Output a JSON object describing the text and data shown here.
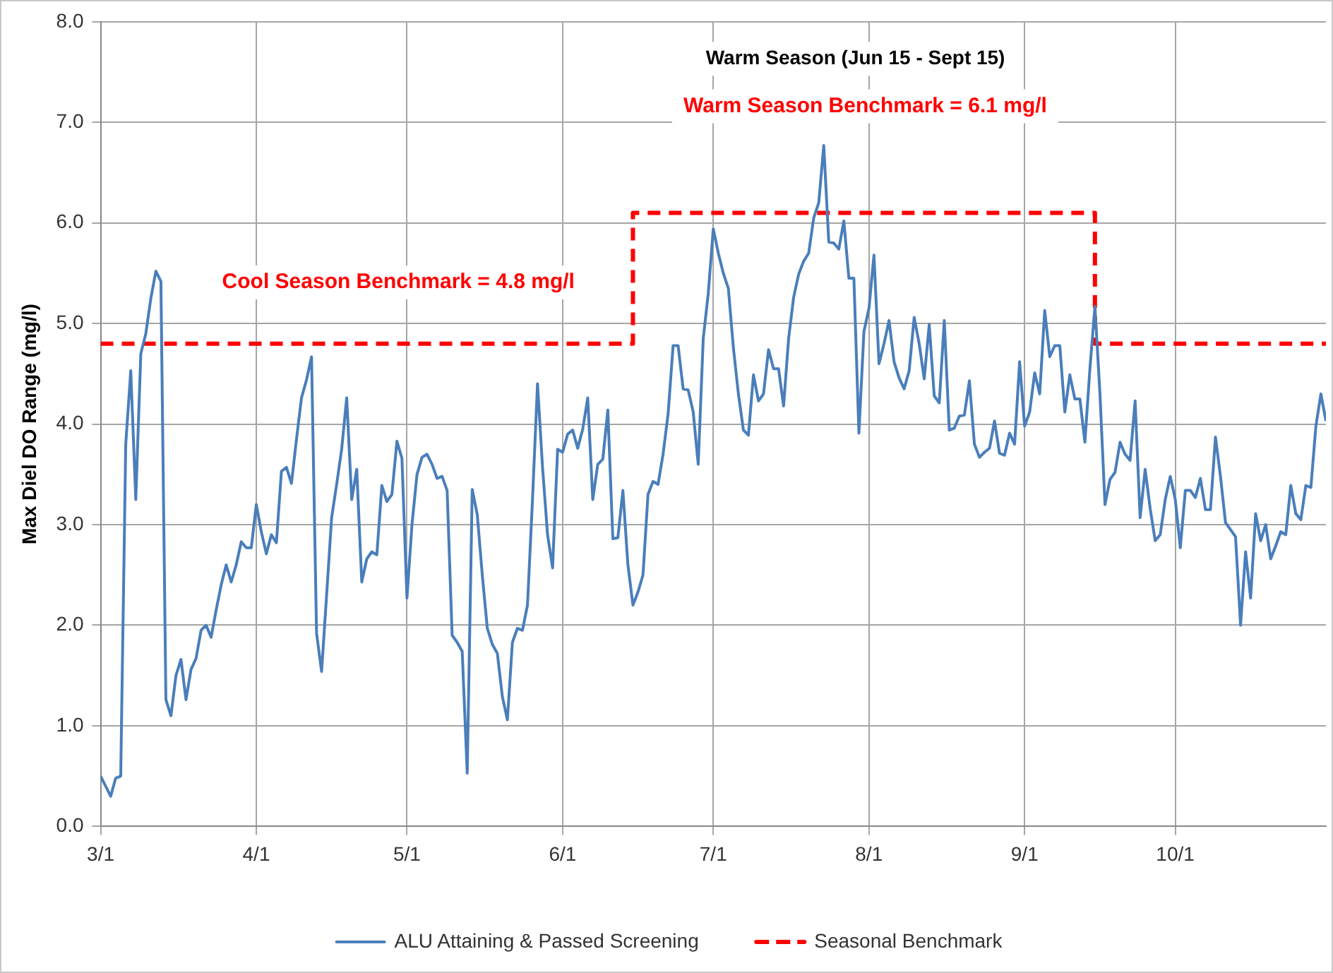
{
  "chart_data": {
    "type": "line",
    "ylabel": "Max Diel DO Range (mg/l)",
    "x": [
      "--03-01",
      "--03-02",
      "--03-03",
      "--03-04",
      "--03-05",
      "--03-06",
      "--03-07",
      "--03-08",
      "--03-09",
      "--03-10",
      "--03-11",
      "--03-12",
      "--03-13",
      "--03-14",
      "--03-15",
      "--03-16",
      "--03-17",
      "--03-18",
      "--03-19",
      "--03-20",
      "--03-21",
      "--03-22",
      "--03-23",
      "--03-24",
      "--03-25",
      "--03-26",
      "--03-27",
      "--03-28",
      "--03-29",
      "--03-30",
      "--03-31",
      "--04-01",
      "--04-02",
      "--04-03",
      "--04-04",
      "--04-05",
      "--04-06",
      "--04-07",
      "--04-08",
      "--04-09",
      "--04-10",
      "--04-11",
      "--04-12",
      "--04-13",
      "--04-14",
      "--04-15",
      "--04-16",
      "--04-17",
      "--04-18",
      "--04-19",
      "--04-20",
      "--04-21",
      "--04-22",
      "--04-23",
      "--04-24",
      "--04-25",
      "--04-26",
      "--04-27",
      "--04-28",
      "--04-29",
      "--04-30",
      "--05-01",
      "--05-02",
      "--05-03",
      "--05-04",
      "--05-05",
      "--05-06",
      "--05-07",
      "--05-08",
      "--05-09",
      "--05-10",
      "--05-11",
      "--05-12",
      "--05-13",
      "--05-14",
      "--05-15",
      "--05-16",
      "--05-17",
      "--05-18",
      "--05-19",
      "--05-20",
      "--05-21",
      "--05-22",
      "--05-23",
      "--05-24",
      "--05-25",
      "--05-26",
      "--05-27",
      "--05-28",
      "--05-29",
      "--05-30",
      "--05-31",
      "--06-01",
      "--06-02",
      "--06-03",
      "--06-04",
      "--06-05",
      "--06-06",
      "--06-07",
      "--06-08",
      "--06-09",
      "--06-10",
      "--06-11",
      "--06-12",
      "--06-13",
      "--06-14",
      "--06-15",
      "--06-16",
      "--06-17",
      "--06-18",
      "--06-19",
      "--06-20",
      "--06-21",
      "--06-22",
      "--06-23",
      "--06-24",
      "--06-25",
      "--06-26",
      "--06-27",
      "--06-28",
      "--06-29",
      "--06-30",
      "--07-01",
      "--07-02",
      "--07-03",
      "--07-04",
      "--07-05",
      "--07-06",
      "--07-07",
      "--07-08",
      "--07-09",
      "--07-10",
      "--07-11",
      "--07-12",
      "--07-13",
      "--07-14",
      "--07-15",
      "--07-16",
      "--07-17",
      "--07-18",
      "--07-19",
      "--07-20",
      "--07-21",
      "--07-22",
      "--07-23",
      "--07-24",
      "--07-25",
      "--07-26",
      "--07-27",
      "--07-28",
      "--07-29",
      "--07-30",
      "--07-31",
      "--08-01",
      "--08-02",
      "--08-03",
      "--08-04",
      "--08-05",
      "--08-06",
      "--08-07",
      "--08-08",
      "--08-09",
      "--08-10",
      "--08-11",
      "--08-12",
      "--08-13",
      "--08-14",
      "--08-15",
      "--08-16",
      "--08-17",
      "--08-18",
      "--08-19",
      "--08-20",
      "--08-21",
      "--08-22",
      "--08-23",
      "--08-24",
      "--08-25",
      "--08-26",
      "--08-27",
      "--08-28",
      "--08-29",
      "--08-30",
      "--08-31",
      "--09-01",
      "--09-02",
      "--09-03",
      "--09-04",
      "--09-05",
      "--09-06",
      "--09-07",
      "--09-08",
      "--09-09",
      "--09-10",
      "--09-11",
      "--09-12",
      "--09-13",
      "--09-14",
      "--09-15",
      "--09-16",
      "--09-17",
      "--09-18",
      "--09-19",
      "--09-20",
      "--09-21",
      "--09-22",
      "--09-23",
      "--09-24",
      "--09-25",
      "--09-26",
      "--09-27",
      "--09-28",
      "--09-29",
      "--09-30",
      "--10-01",
      "--10-02",
      "--10-03",
      "--10-04",
      "--10-05",
      "--10-06",
      "--10-07",
      "--10-08",
      "--10-09",
      "--10-10",
      "--10-11",
      "--10-12",
      "--10-13",
      "--10-14",
      "--10-15",
      "--10-16",
      "--10-17",
      "--10-18",
      "--10-19",
      "--10-20",
      "--10-21",
      "--10-22",
      "--10-23",
      "--10-24",
      "--10-25",
      "--10-26",
      "--10-27",
      "--10-28",
      "--10-29",
      "--10-30",
      "--10-31"
    ],
    "series": [
      {
        "name": "ALU Attaining & Passed Screening",
        "color": "#4a7ebb",
        "values": [
          0.5,
          0.4,
          0.3,
          0.48,
          0.5,
          3.8,
          4.53,
          3.25,
          4.7,
          4.9,
          5.25,
          5.52,
          5.42,
          1.26,
          1.1,
          1.5,
          1.66,
          1.26,
          1.56,
          1.67,
          1.95,
          2.0,
          1.88,
          2.15,
          2.4,
          2.6,
          2.43,
          2.6,
          2.83,
          2.77,
          2.77,
          3.2,
          2.93,
          2.71,
          2.9,
          2.82,
          3.53,
          3.57,
          3.41,
          3.85,
          4.26,
          4.44,
          4.67,
          1.92,
          1.54,
          2.3,
          3.07,
          3.4,
          3.75,
          4.26,
          3.25,
          3.55,
          2.43,
          2.66,
          2.73,
          2.7,
          3.39,
          3.23,
          3.3,
          3.83,
          3.66,
          2.27,
          3.0,
          3.5,
          3.67,
          3.7,
          3.6,
          3.46,
          3.48,
          3.34,
          1.9,
          1.83,
          1.74,
          0.53,
          3.35,
          3.1,
          2.5,
          1.97,
          1.81,
          1.72,
          1.29,
          1.06,
          1.83,
          1.97,
          1.95,
          2.2,
          3.25,
          4.4,
          3.57,
          2.9,
          2.57,
          3.75,
          3.72,
          3.9,
          3.94,
          3.76,
          3.95,
          4.26,
          3.25,
          3.6,
          3.65,
          4.14,
          2.86,
          2.87,
          3.34,
          2.6,
          2.2,
          2.33,
          2.5,
          3.3,
          3.43,
          3.4,
          3.7,
          4.1,
          4.78,
          4.78,
          4.35,
          4.34,
          4.12,
          3.6,
          4.85,
          5.3,
          5.94,
          5.7,
          5.5,
          5.35,
          4.76,
          4.3,
          3.94,
          3.89,
          4.49,
          4.23,
          4.3,
          4.74,
          4.55,
          4.55,
          4.18,
          4.85,
          5.26,
          5.49,
          5.62,
          5.7,
          6.05,
          6.2,
          6.77,
          5.81,
          5.8,
          5.74,
          6.02,
          5.45,
          5.45,
          3.91,
          4.92,
          5.15,
          5.68,
          4.6,
          4.8,
          5.03,
          4.62,
          4.46,
          4.35,
          4.53,
          5.06,
          4.8,
          4.45,
          4.99,
          4.28,
          4.21,
          5.03,
          3.94,
          3.96,
          4.08,
          4.09,
          4.43,
          3.8,
          3.67,
          3.72,
          3.76,
          4.03,
          3.71,
          3.69,
          3.91,
          3.8,
          4.62,
          3.98,
          4.12,
          4.51,
          4.3,
          5.13,
          4.67,
          4.78,
          4.78,
          4.12,
          4.49,
          4.25,
          4.25,
          3.82,
          4.55,
          5.17,
          4.3,
          3.2,
          3.45,
          3.52,
          3.82,
          3.7,
          3.64,
          4.23,
          3.07,
          3.55,
          3.16,
          2.84,
          2.9,
          3.25,
          3.48,
          3.25,
          2.77,
          3.34,
          3.34,
          3.27,
          3.46,
          3.15,
          3.15,
          3.87,
          3.48,
          3.02,
          2.95,
          2.88,
          2.0,
          2.73,
          2.27,
          3.11,
          2.84,
          3.0,
          2.66,
          2.79,
          2.93,
          2.9,
          3.39,
          3.11,
          3.05,
          3.39,
          3.37,
          3.98,
          4.3,
          4.03
        ]
      },
      {
        "name": "Seasonal Benchmark",
        "color": "#ff0000",
        "line_style": "dashed",
        "x": [
          "--03-01",
          "--06-15",
          "--06-15",
          "--09-15",
          "--09-15",
          "--10-31"
        ],
        "values": [
          4.8,
          4.8,
          6.1,
          6.1,
          4.8,
          4.8
        ]
      }
    ],
    "annotations": [
      "Warm Season (Jun 15 - Sept 15)",
      "Warm Season Benchmark = 6.1 mg/l",
      "Cool Season Benchmark = 4.8 mg/l"
    ],
    "xlim": [
      "--03-01",
      "--10-31"
    ],
    "xticks": [
      {
        "value": "--03-01",
        "label": "3/1"
      },
      {
        "value": "--04-01",
        "label": "4/1"
      },
      {
        "value": "--05-01",
        "label": "5/1"
      },
      {
        "value": "--06-01",
        "label": "6/1"
      },
      {
        "value": "--07-01",
        "label": "7/1"
      },
      {
        "value": "--08-01",
        "label": "8/1"
      },
      {
        "value": "--09-01",
        "label": "9/1"
      },
      {
        "value": "--10-01",
        "label": "10/1"
      }
    ],
    "ylim": [
      0,
      8
    ],
    "yticks": [
      {
        "value": 0,
        "label": "0.0"
      },
      {
        "value": 1,
        "label": "1.0"
      },
      {
        "value": 2,
        "label": "2.0"
      },
      {
        "value": 3,
        "label": "3.0"
      },
      {
        "value": 4,
        "label": "4.0"
      },
      {
        "value": 5,
        "label": "5.0"
      },
      {
        "value": 6,
        "label": "6.0"
      },
      {
        "value": 7,
        "label": "7.0"
      },
      {
        "value": 8,
        "label": "8.0"
      }
    ],
    "grid": true,
    "legend": "bottom",
    "marker": "none",
    "line_style": "solid"
  }
}
